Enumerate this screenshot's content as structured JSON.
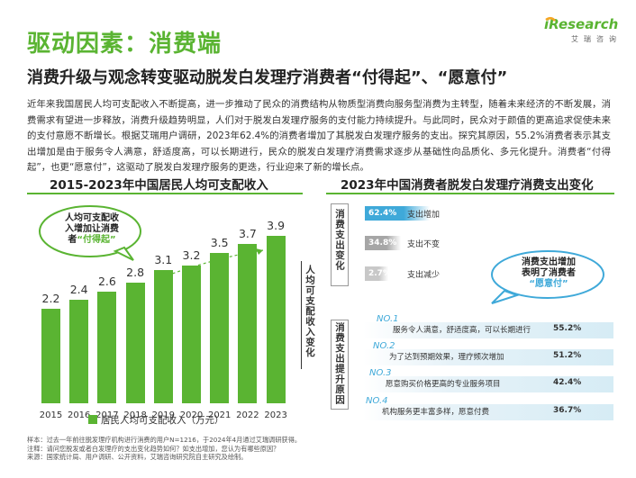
{
  "header": {
    "title": "驱动因素：消费端",
    "subtitle": "消费升级与观念转变驱动脱发白发理疗消费者“付得起”、“愿意付”",
    "logo_main": "iResearch",
    "logo_sub": "艾瑞咨询",
    "accent_color": "#5ab432"
  },
  "paragraph": "近年来我国居民人均可支配收入不断提高，进一步推动了民众的消费结构从物质型消费向服务型消费为主转型，随着未来经济的不断发展，消费需求有望进一步释放，消费升级趋势明显，人们对于脱发白发理疗服务的支付能力持续提升。与此同时，民众对于颜值的更高追求促使未来的支付意愿不断增长。根据艾瑞用户调研，2023年62.4%的消费者增加了其脱发白发理疗服务的支出。探究其原因，55.2%消费者表示其支出增加是由于服务令人满意，舒适度高，可以长期进行，民众的脱发白发理疗消费需求逐步从基础性向品质化、多元化提升。消费者“付得起”，也更“愿意付”，这驱动了脱发白发理疗服务的更迭，行业迎来了新的增长点。",
  "left_chart": {
    "title": "2015-2023年中国居民人均可支配收入",
    "bubble": [
      "人均可支配收",
      "入增加让消费",
      "者",
      "“付得起”"
    ],
    "side_label": "人均可支配收入变化",
    "legend": "居民人均可支配收入（万元）"
  },
  "right_chart": {
    "title": "2023年中国消费者脱发白发理疗消费支出变化",
    "side_label_top": "消费支出变化",
    "side_label_bottom": "消费支出提升原因",
    "bubble": [
      "消费支出增加",
      "表明了消费者",
      "“愿意付”"
    ]
  },
  "chart_data": [
    {
      "type": "bar",
      "title": "2015-2023年中国居民人均可支配收入",
      "categories": [
        "2015",
        "2016",
        "2017",
        "2018",
        "2019",
        "2020",
        "2021",
        "2022",
        "2023"
      ],
      "series": [
        {
          "name": "居民人均可支配收入（万元）",
          "values": [
            2.2,
            2.4,
            2.6,
            2.8,
            3.1,
            3.2,
            3.5,
            3.7,
            3.9
          ],
          "labels": [
            "2.2",
            "2.4",
            "2.6",
            "2.8",
            "3.1",
            "3.2",
            "3.5",
            "3.7",
            "3.9"
          ]
        }
      ],
      "ylim": [
        0,
        4.4
      ],
      "color": "#5ab432"
    },
    {
      "type": "bar",
      "title": "2023年中国消费者脱发白发理疗消费支出变化",
      "categories": [
        "支出增加",
        "支出不变",
        "支出减少"
      ],
      "values": [
        62.4,
        34.8,
        2.7
      ],
      "labels": [
        "62.4%",
        "34.8%",
        "2.7%"
      ],
      "colors": [
        "#3fa9d9",
        "#a6a6a6",
        "#c8c8c8"
      ]
    },
    {
      "type": "table",
      "title": "消费支出提升原因",
      "rows": [
        {
          "no": "NO.1",
          "reason": "服务令人满意，舒适度高，可以长期进行",
          "value": 55.2,
          "label": "55.2%"
        },
        {
          "no": "NO.2",
          "reason": "为了达到预期效果，理疗频次增加",
          "value": 51.2,
          "label": "51.2%"
        },
        {
          "no": "NO.3",
          "reason": "愿意购买价格更高的专业服务项目",
          "value": 42.4,
          "label": "42.4%"
        },
        {
          "no": "NO.4",
          "reason": "机构服务更丰富多样，愿意付费",
          "value": 36.7,
          "label": "36.7%"
        }
      ]
    }
  ],
  "notes": [
    "样本：过去一年前往脱发理疗机构进行消费的用户N=1216，于2024年4月通过艾瑞调研获得。",
    "注释：请问您脱发或者白发理疗的支出变化趋势如何？如支出增加，您认为有哪些原因？",
    "来源：国家统计局、用户调研、公开资料，艾瑞咨询研究院自主研究及绘制。"
  ]
}
